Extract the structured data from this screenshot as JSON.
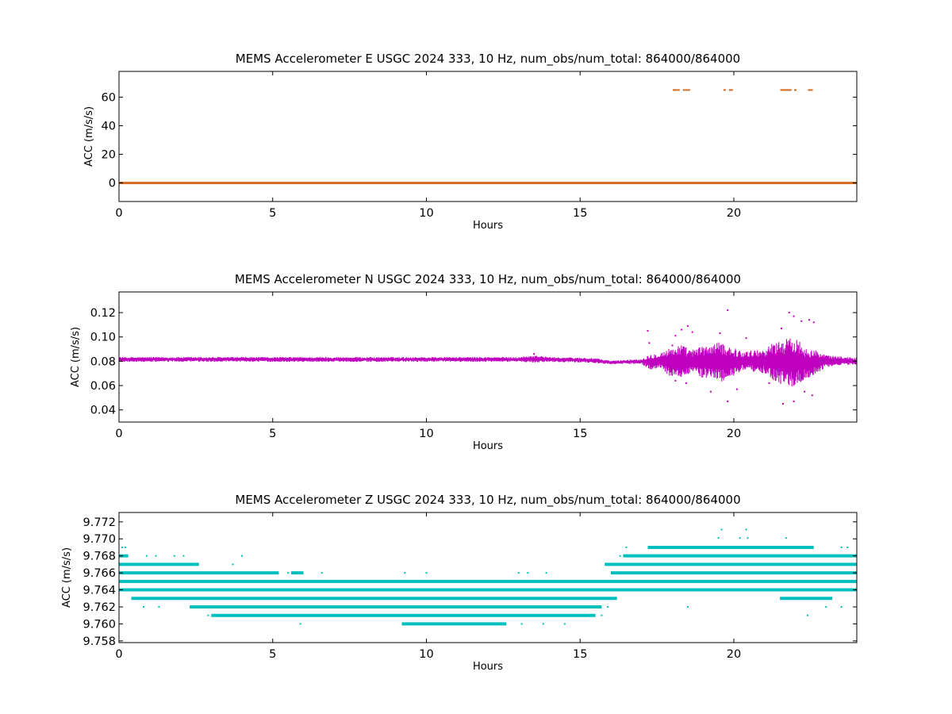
{
  "chart_data": [
    {
      "type": "scatter",
      "title": "MEMS Accelerometer E USGC 2024 333, 10 Hz, num_obs/num_total: 864000/864000",
      "xlabel": "Hours",
      "ylabel": "ACC (m/s/s)",
      "xlim": [
        0,
        24
      ],
      "ylim": [
        -13,
        78
      ],
      "xticks": [
        0,
        5,
        10,
        15,
        20
      ],
      "xtick_labels": [
        "0",
        "5",
        "10",
        "15",
        "20"
      ],
      "yticks": [
        0,
        20,
        40,
        60
      ],
      "ytick_labels": [
        "0",
        "20",
        "40",
        "60"
      ],
      "color": "#d2691e",
      "grid": false,
      "series": [
        {
          "baseline": {
            "x": [
              0,
              24
            ],
            "y": 0
          },
          "points": [
            {
              "x": 18.05,
              "y": 65
            },
            {
              "x": 18.12,
              "y": 65
            },
            {
              "x": 18.2,
              "y": 65
            },
            {
              "x": 18.38,
              "y": 65
            },
            {
              "x": 18.46,
              "y": 65
            },
            {
              "x": 18.54,
              "y": 65
            },
            {
              "x": 19.7,
              "y": 65
            },
            {
              "x": 19.88,
              "y": 65
            },
            {
              "x": 19.93,
              "y": 65
            },
            {
              "x": 21.55,
              "y": 65
            },
            {
              "x": 21.6,
              "y": 65
            },
            {
              "x": 21.66,
              "y": 65
            },
            {
              "x": 21.72,
              "y": 65
            },
            {
              "x": 21.78,
              "y": 65
            },
            {
              "x": 21.84,
              "y": 65
            },
            {
              "x": 22.0,
              "y": 65
            },
            {
              "x": 22.45,
              "y": 65
            },
            {
              "x": 22.53,
              "y": 65
            }
          ]
        }
      ]
    },
    {
      "type": "scatter",
      "title": "MEMS Accelerometer N USGC 2024 333, 10 Hz, num_obs/num_total: 864000/864000",
      "xlabel": "Hours",
      "ylabel": "ACC (m/s/s)",
      "xlim": [
        0,
        24
      ],
      "ylim": [
        0.03,
        0.137
      ],
      "xticks": [
        0,
        5,
        10,
        15,
        20
      ],
      "xtick_labels": [
        "0",
        "5",
        "10",
        "15",
        "20"
      ],
      "yticks": [
        0.04,
        0.06,
        0.08,
        0.1,
        0.12
      ],
      "ytick_labels": [
        "0.04",
        "0.06",
        "0.08",
        "0.10",
        "0.12"
      ],
      "color": "#bf00bf",
      "grid": false,
      "series": [
        {
          "envelope": {
            "x": [
              0,
              1,
              2,
              3,
              4,
              5,
              6,
              7,
              8,
              9,
              10,
              11,
              12,
              13,
              13.5,
              14,
              15,
              15.5,
              16,
              16.5,
              17,
              17.3,
              17.6,
              18,
              18.3,
              18.6,
              19,
              19.3,
              19.6,
              20,
              20.3,
              20.6,
              21,
              21.3,
              21.6,
              22,
              22.3,
              22.6,
              23,
              23.5,
              24
            ],
            "lower": [
              0.0795,
              0.0795,
              0.0795,
              0.0795,
              0.0795,
              0.0795,
              0.0795,
              0.0795,
              0.0795,
              0.0795,
              0.0795,
              0.0795,
              0.0795,
              0.0795,
              0.079,
              0.0795,
              0.079,
              0.0785,
              0.0775,
              0.0778,
              0.0775,
              0.073,
              0.074,
              0.066,
              0.067,
              0.07,
              0.066,
              0.066,
              0.063,
              0.068,
              0.072,
              0.071,
              0.07,
              0.064,
              0.06,
              0.059,
              0.064,
              0.068,
              0.075,
              0.077,
              0.077
            ],
            "upper": [
              0.0835,
              0.0835,
              0.0835,
              0.0835,
              0.0835,
              0.0835,
              0.0835,
              0.0835,
              0.0835,
              0.0835,
              0.0835,
              0.0835,
              0.0835,
              0.0835,
              0.085,
              0.0835,
              0.083,
              0.0825,
              0.0805,
              0.0812,
              0.082,
              0.086,
              0.087,
              0.092,
              0.094,
              0.089,
              0.093,
              0.094,
              0.096,
              0.091,
              0.088,
              0.089,
              0.09,
              0.096,
              0.098,
              0.1,
              0.093,
              0.09,
              0.085,
              0.084,
              0.083
            ]
          },
          "points": [
            {
              "x": 17.2,
              "y": 0.105
            },
            {
              "x": 17.25,
              "y": 0.095
            },
            {
              "x": 18.0,
              "y": 0.093
            },
            {
              "x": 18.1,
              "y": 0.101
            },
            {
              "x": 18.3,
              "y": 0.106
            },
            {
              "x": 18.5,
              "y": 0.109
            },
            {
              "x": 18.65,
              "y": 0.104
            },
            {
              "x": 19.8,
              "y": 0.122
            },
            {
              "x": 19.55,
              "y": 0.103
            },
            {
              "x": 20.4,
              "y": 0.099
            },
            {
              "x": 21.55,
              "y": 0.107
            },
            {
              "x": 21.8,
              "y": 0.12
            },
            {
              "x": 21.95,
              "y": 0.117
            },
            {
              "x": 22.2,
              "y": 0.113
            },
            {
              "x": 22.45,
              "y": 0.114
            },
            {
              "x": 22.6,
              "y": 0.112
            },
            {
              "x": 18.1,
              "y": 0.064
            },
            {
              "x": 18.45,
              "y": 0.062
            },
            {
              "x": 19.25,
              "y": 0.055
            },
            {
              "x": 19.8,
              "y": 0.047
            },
            {
              "x": 20.1,
              "y": 0.057
            },
            {
              "x": 21.15,
              "y": 0.062
            },
            {
              "x": 21.6,
              "y": 0.045
            },
            {
              "x": 21.95,
              "y": 0.047
            },
            {
              "x": 22.3,
              "y": 0.055
            },
            {
              "x": 22.55,
              "y": 0.052
            },
            {
              "x": 13.5,
              "y": 0.086
            }
          ]
        }
      ]
    },
    {
      "type": "scatter",
      "title": "MEMS Accelerometer Z USGC 2024 333, 10 Hz, num_obs/num_total: 864000/864000",
      "xlabel": "Hours",
      "ylabel": "ACC (m/s/s)",
      "xlim": [
        0,
        24
      ],
      "ylim": [
        9.7578,
        9.7731
      ],
      "xticks": [
        0,
        5,
        10,
        15,
        20
      ],
      "xtick_labels": [
        "0",
        "5",
        "10",
        "15",
        "20"
      ],
      "yticks": [
        9.758,
        9.76,
        9.762,
        9.764,
        9.766,
        9.768,
        9.77,
        9.772
      ],
      "ytick_labels": [
        "9.758",
        "9.760",
        "9.762",
        "9.764",
        "9.766",
        "9.768",
        "9.770",
        "9.772"
      ],
      "color": "#00bfbf",
      "grid": false,
      "series": [
        {
          "quantized_levels": [
            {
              "y": 9.764,
              "x_ranges": [
                [
                  0,
                  24
                ]
              ]
            },
            {
              "y": 9.765,
              "x_ranges": [
                [
                  0,
                  24
                ]
              ]
            },
            {
              "y": 9.766,
              "x_ranges": [
                [
                  0,
                  5.2
                ],
                [
                  5.6,
                  6.0
                ],
                [
                  16.0,
                  24
                ]
              ]
            },
            {
              "y": 9.763,
              "x_ranges": [
                [
                  0.4,
                  16.2
                ],
                [
                  21.5,
                  23.2
                ]
              ]
            },
            {
              "y": 9.767,
              "x_ranges": [
                [
                  0,
                  2.6
                ],
                [
                  15.8,
                  24
                ]
              ]
            },
            {
              "y": 9.762,
              "x_ranges": [
                [
                  2.3,
                  15.7
                ]
              ]
            },
            {
              "y": 9.768,
              "x_ranges": [
                [
                  0,
                  0.3
                ],
                [
                  16.4,
                  24
                ]
              ]
            },
            {
              "y": 9.761,
              "x_ranges": [
                [
                  3.0,
                  15.5
                ]
              ]
            },
            {
              "y": 9.76,
              "x_ranges": [
                [
                  9.2,
                  12.6
                ]
              ]
            },
            {
              "y": 9.769,
              "x_ranges": [
                [
                  17.2,
                  22.6
                ]
              ]
            }
          ],
          "points": [
            {
              "x": 0.1,
              "y": 9.769
            },
            {
              "x": 0.2,
              "y": 9.769
            },
            {
              "x": 0.9,
              "y": 9.768
            },
            {
              "x": 1.2,
              "y": 9.768
            },
            {
              "x": 1.8,
              "y": 9.768
            },
            {
              "x": 2.1,
              "y": 9.768
            },
            {
              "x": 4.0,
              "y": 9.768
            },
            {
              "x": 3.7,
              "y": 9.767
            },
            {
              "x": 0.8,
              "y": 9.762
            },
            {
              "x": 1.3,
              "y": 9.762
            },
            {
              "x": 2.9,
              "y": 9.761
            },
            {
              "x": 5.9,
              "y": 9.76
            },
            {
              "x": 5.5,
              "y": 9.766
            },
            {
              "x": 6.6,
              "y": 9.766
            },
            {
              "x": 9.3,
              "y": 9.766
            },
            {
              "x": 10.0,
              "y": 9.766
            },
            {
              "x": 11.3,
              "y": 9.765
            },
            {
              "x": 12.9,
              "y": 9.765
            },
            {
              "x": 13.0,
              "y": 9.766
            },
            {
              "x": 13.3,
              "y": 9.766
            },
            {
              "x": 13.9,
              "y": 9.766
            },
            {
              "x": 13.1,
              "y": 9.76
            },
            {
              "x": 13.8,
              "y": 9.76
            },
            {
              "x": 14.5,
              "y": 9.76
            },
            {
              "x": 15.7,
              "y": 9.761
            },
            {
              "x": 15.9,
              "y": 9.762
            },
            {
              "x": 16.3,
              "y": 9.768
            },
            {
              "x": 16.5,
              "y": 9.769
            },
            {
              "x": 17.8,
              "y": 9.769
            },
            {
              "x": 19.5,
              "y": 9.7701
            },
            {
              "x": 19.6,
              "y": 9.7711
            },
            {
              "x": 20.4,
              "y": 9.7711
            },
            {
              "x": 20.45,
              "y": 9.7701
            },
            {
              "x": 20.2,
              "y": 9.7701
            },
            {
              "x": 21.7,
              "y": 9.7701
            },
            {
              "x": 23.5,
              "y": 9.769
            },
            {
              "x": 23.7,
              "y": 9.769
            },
            {
              "x": 23.0,
              "y": 9.762
            },
            {
              "x": 23.5,
              "y": 9.762
            },
            {
              "x": 18.5,
              "y": 9.762
            },
            {
              "x": 22.4,
              "y": 9.761
            },
            {
              "x": 22.8,
              "y": 9.763
            },
            {
              "x": 21.6,
              "y": 9.763
            }
          ]
        }
      ]
    }
  ]
}
